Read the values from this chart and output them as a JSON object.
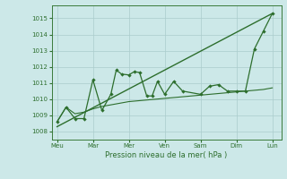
{
  "background_color": "#cce8e8",
  "grid_color": "#aacccc",
  "line_color": "#2d6e2d",
  "x_labels": [
    "Meu",
    "Mar",
    "Mer",
    "Ven",
    "Sam",
    "Dim",
    "Lun"
  ],
  "x_ticks": [
    0,
    2,
    4,
    6,
    8,
    10,
    12
  ],
  "ylabel": "Pression niveau de la mer( hPa )",
  "ylim": [
    1007.5,
    1015.8
  ],
  "yticks": [
    1008,
    1009,
    1010,
    1011,
    1012,
    1013,
    1014,
    1015
  ],
  "line_straight": {
    "x": [
      0,
      12
    ],
    "y": [
      1008.3,
      1015.3
    ]
  },
  "line_smooth": {
    "x": [
      0,
      0.5,
      1.0,
      1.5,
      2.0,
      2.5,
      3.0,
      3.5,
      4.0,
      4.5,
      5.0,
      5.5,
      6.0,
      6.5,
      7.0,
      7.5,
      8.0,
      8.5,
      9.0,
      9.5,
      10.0,
      10.5,
      11.0,
      11.5,
      12.0
    ],
    "y": [
      1008.6,
      1009.5,
      1009.1,
      1009.2,
      1009.4,
      1009.55,
      1009.65,
      1009.75,
      1009.85,
      1009.9,
      1009.95,
      1010.0,
      1010.05,
      1010.1,
      1010.15,
      1010.2,
      1010.25,
      1010.3,
      1010.35,
      1010.4,
      1010.45,
      1010.5,
      1010.55,
      1010.6,
      1010.7
    ]
  },
  "line_jagged": {
    "x": [
      0,
      0.5,
      1.0,
      1.5,
      2.0,
      2.5,
      3.0,
      3.3,
      3.6,
      4.0,
      4.3,
      4.6,
      5.0,
      5.3,
      5.6,
      6.0,
      6.5,
      7.0,
      8.0,
      8.5,
      9.0,
      9.5,
      10.0,
      10.5,
      11.0,
      11.5,
      12.0
    ],
    "y": [
      1008.6,
      1009.5,
      1008.8,
      1008.8,
      1011.2,
      1009.3,
      1010.3,
      1011.8,
      1011.55,
      1011.5,
      1011.7,
      1011.65,
      1010.2,
      1010.2,
      1011.1,
      1010.3,
      1011.1,
      1010.5,
      1010.3,
      1010.8,
      1010.9,
      1010.5,
      1010.5,
      1010.5,
      1013.1,
      1014.2,
      1015.3
    ]
  }
}
